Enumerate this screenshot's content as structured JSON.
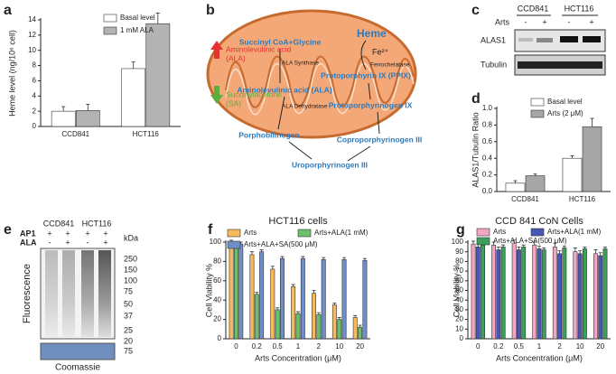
{
  "panel_labels": [
    "a",
    "b",
    "c",
    "d",
    "e",
    "f",
    "g"
  ],
  "chart_data": [
    {
      "type": "bar",
      "y_label": "Heme level (ng/10⁶ cell)",
      "categories": [
        "CCD841",
        "HCT116"
      ],
      "series": [
        {
          "name": "Basal level",
          "color": "#ffffff",
          "values": [
            2.0,
            7.6
          ],
          "errors": [
            0.6,
            0.9
          ]
        },
        {
          "name": "1 mM ALA",
          "color": "#b3b3b3",
          "values": [
            2.1,
            13.5
          ],
          "errors": [
            0.8,
            1.4
          ]
        }
      ],
      "ylim": [
        0,
        14
      ],
      "yticks": [
        0,
        2,
        4,
        6,
        8,
        10,
        12,
        14
      ]
    },
    {
      "type": "bar",
      "y_label": "ALAS1/Tubulin Ratio",
      "categories": [
        "CCD841",
        "HCT116"
      ],
      "series": [
        {
          "name": "Basal level",
          "color": "#ffffff",
          "values": [
            0.1,
            0.4
          ],
          "errors": [
            0.03,
            0.03
          ]
        },
        {
          "name": "Arts (2 μM)",
          "color": "#a6a6a6",
          "values": [
            0.19,
            0.78
          ],
          "errors": [
            0.02,
            0.1
          ]
        }
      ],
      "ylim": [
        0,
        1
      ],
      "yticks": [
        {
          "value": 0,
          "label": "0.0"
        },
        0.2,
        0.4,
        0.6,
        0.8,
        {
          "value": 1,
          "label": "1.0"
        }
      ]
    },
    {
      "type": "bar",
      "title": "HCT116 cells",
      "x_label": "Arts Concentration (μM)",
      "y_label": "Cell Viability %",
      "categories": [
        "0",
        "0.2",
        "0.5",
        "1",
        "2",
        "10",
        "20"
      ],
      "series": [
        {
          "name": "Arts",
          "color": "#f6b95c",
          "values": [
            100,
            87,
            72,
            54,
            47,
            35,
            22
          ],
          "errors": [
            2,
            3,
            3,
            2,
            3,
            2,
            2
          ]
        },
        {
          "name": "Arts+ALA(1 mM)",
          "color": "#6cc06c",
          "values": [
            97,
            46,
            30,
            26,
            25,
            20,
            12
          ],
          "errors": [
            2,
            2,
            2,
            2,
            2,
            2,
            2
          ]
        },
        {
          "name": "Arts+ALA+SA(500 μM)",
          "color": "#6f8fc8",
          "values": [
            98,
            90,
            83,
            83,
            82,
            82,
            81
          ],
          "errors": [
            2,
            2,
            2,
            2,
            2,
            2,
            2
          ]
        }
      ],
      "ylim": [
        0,
        100
      ],
      "yticks": [
        0,
        20,
        40,
        60,
        80,
        100
      ]
    },
    {
      "type": "bar",
      "title": "CCD 841 CoN Cells",
      "x_label": "Arts Concentration (μM)",
      "y_label": "Cell Viability %",
      "categories": [
        "0",
        "0.2",
        "0.5",
        "1",
        "2",
        "10",
        "20"
      ],
      "series": [
        {
          "name": "Arts",
          "color": "#f2a6c4",
          "values": [
            98,
            97,
            99,
            97,
            95,
            90,
            88
          ],
          "errors": [
            3,
            3,
            3,
            3,
            4,
            4,
            4
          ]
        },
        {
          "name": "Arts+ALA(1 mM)",
          "color": "#4a55b8",
          "values": [
            95,
            92,
            92,
            93,
            88,
            88,
            86
          ],
          "errors": [
            3,
            3,
            3,
            3,
            3,
            3,
            3
          ]
        },
        {
          "name": "Arts+ALA+SA(500 μM)",
          "color": "#3aa05a",
          "values": [
            97,
            95,
            95,
            92,
            94,
            93,
            93
          ],
          "errors": [
            2,
            2,
            2,
            2,
            2,
            2,
            2
          ]
        }
      ],
      "ylim": [
        0,
        100
      ],
      "yticks": [
        0,
        10,
        20,
        30,
        40,
        50,
        60,
        70,
        80,
        90,
        100
      ]
    }
  ],
  "diagram_b": {
    "heme": "Heme",
    "iron": "Fe²⁺",
    "ferrochelatase": "Ferrochelatase",
    "substrates": "Succinyl CoA+Glycine",
    "synthase": "ALA Synthase",
    "ala": "Aminolevulinic acid (ALA)",
    "dehydratase": "ALA Dehydratase",
    "ppix": "Protoporphyrin IX (PPIX)",
    "protogen": "Protoporphyrinogen IX",
    "pbg": "Porphobilinogen",
    "coprogen": "Coproporphyrinogen III",
    "urogen": "Uroporphyrinogen III",
    "ala_side": [
      "Aminolevulinic acid",
      "(ALA)"
    ],
    "sa_side": [
      "Succinylacetone",
      "(SA)"
    ]
  },
  "blot_c": {
    "cell_lines": [
      "CCD841",
      "HCT116"
    ],
    "treatment": "Arts",
    "signs": [
      "-",
      "+",
      "-",
      "+"
    ],
    "proteins": [
      "ALAS1",
      "Tubulin"
    ]
  },
  "gel_e": {
    "cell_lines": [
      "CCD841",
      "HCT116"
    ],
    "rows": [
      {
        "label": "AP1",
        "signs": [
          "+",
          "+",
          "+",
          "+"
        ]
      },
      {
        "label": "ALA",
        "signs": [
          "-",
          "+",
          "-",
          "+"
        ]
      }
    ],
    "unit": "kDa",
    "markers": [
      "250",
      "150",
      "100",
      "75",
      "50",
      "37",
      "25",
      "20"
    ],
    "y_label": "Fluorescence",
    "loading_marker": "75",
    "loading_label": "Coomassie"
  }
}
